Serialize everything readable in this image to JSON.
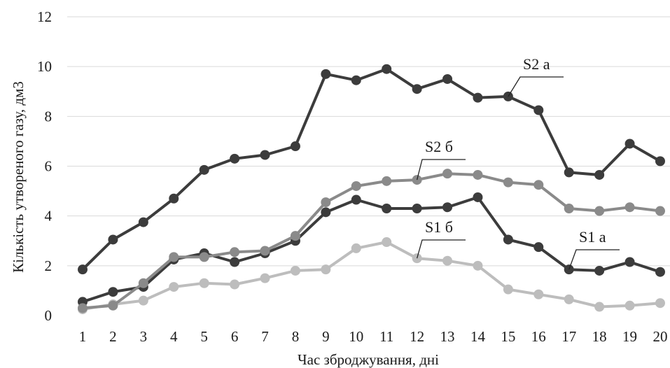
{
  "chart_data": {
    "type": "line",
    "xlabel": "Час зброджування, дні",
    "ylabel": "Кількість утвореного газу, дм3",
    "ylim": [
      0,
      12
    ],
    "yticks": [
      0,
      2,
      4,
      6,
      8,
      10,
      12
    ],
    "grid": true,
    "legend": "none",
    "categories": [
      "1",
      "2",
      "3",
      "4",
      "5",
      "6",
      "7",
      "8",
      "9",
      "10",
      "11",
      "12",
      "13",
      "14",
      "15",
      "16",
      "17",
      "18",
      "19",
      "20"
    ],
    "series": [
      {
        "name": "S2 а",
        "color": "#3c3c3c",
        "values": [
          1.85,
          3.05,
          3.75,
          4.7,
          5.85,
          6.3,
          6.45,
          6.8,
          9.7,
          9.45,
          9.9,
          9.1,
          9.5,
          8.75,
          8.8,
          8.25,
          5.75,
          5.65,
          6.9,
          6.2
        ]
      },
      {
        "name": "S2 б",
        "color": "#8a8a8a",
        "values": [
          0.3,
          0.4,
          1.3,
          2.35,
          2.35,
          2.55,
          2.6,
          3.2,
          4.55,
          5.2,
          5.4,
          5.45,
          5.7,
          5.65,
          5.35,
          5.25,
          4.3,
          4.2,
          4.35,
          4.2
        ]
      },
      {
        "name": "S1 а",
        "color": "#3c3c3c",
        "values": [
          0.55,
          0.95,
          1.15,
          2.25,
          2.5,
          2.15,
          2.5,
          3.0,
          4.15,
          4.65,
          4.3,
          4.3,
          4.35,
          4.75,
          3.05,
          2.75,
          1.85,
          1.8,
          2.15,
          1.75
        ]
      },
      {
        "name": "S1 б",
        "color": "#bdbdbd",
        "values": [
          0.25,
          0.45,
          0.6,
          1.15,
          1.3,
          1.25,
          1.5,
          1.8,
          1.85,
          2.7,
          2.95,
          2.3,
          2.2,
          2.0,
          1.05,
          0.85,
          0.65,
          0.35,
          0.4,
          0.5
        ]
      }
    ]
  }
}
